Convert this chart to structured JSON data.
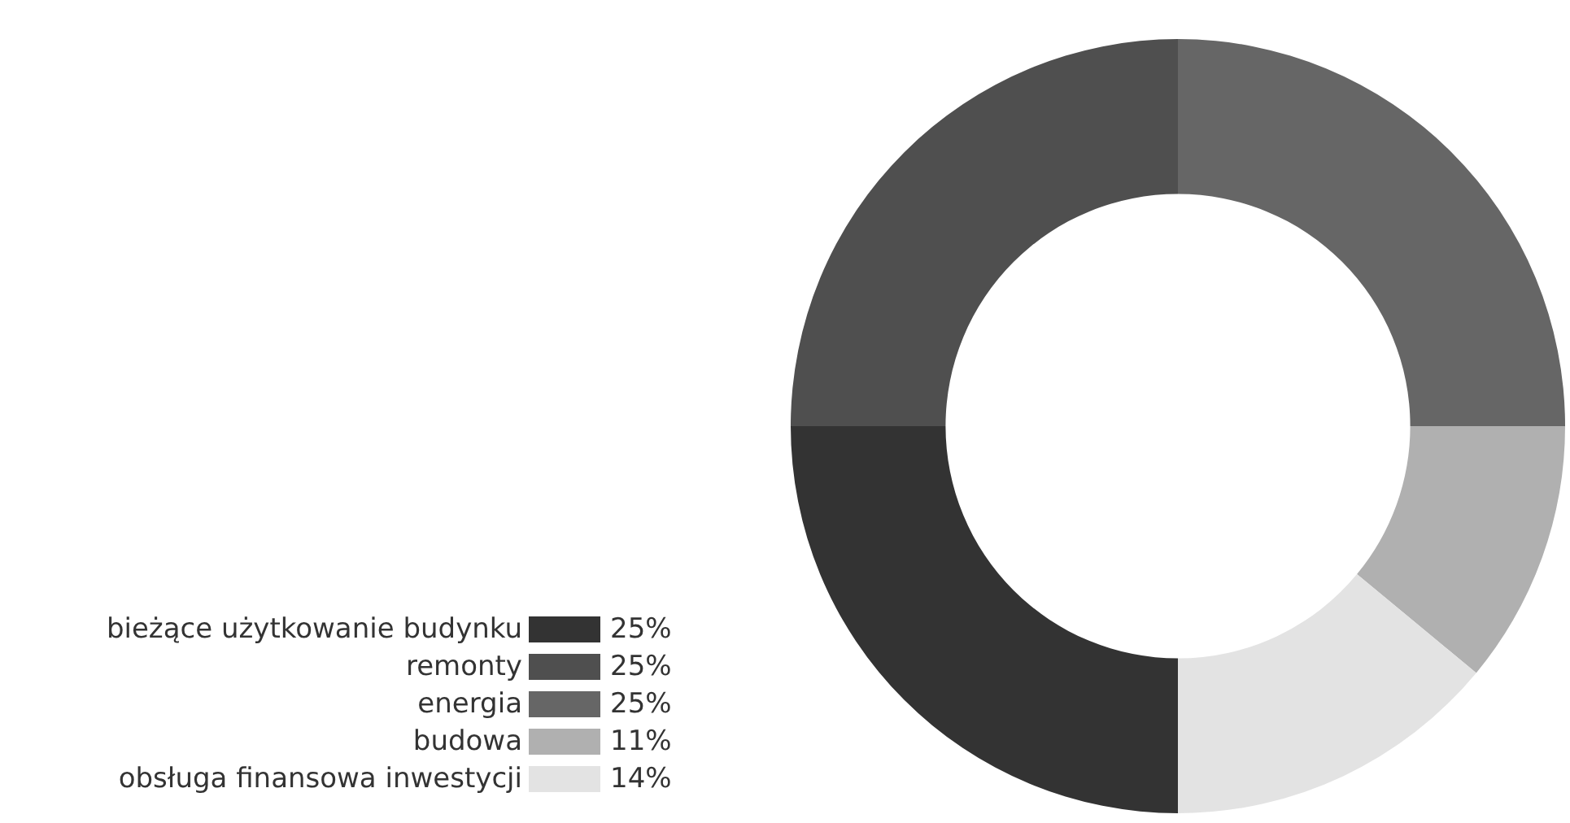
{
  "chart_data": {
    "type": "donut",
    "categories": [
      "bieżące użytkowanie budynku",
      "remonty",
      "energia",
      "budowa",
      "obsługa finansowa inwestycji"
    ],
    "values": [
      25,
      25,
      25,
      11,
      14
    ],
    "colors": [
      "#333333",
      "#4f4f4f",
      "#666666",
      "#b0b0b0",
      "#e3e3e3"
    ],
    "value_labels": [
      "25%",
      "25%",
      "25%",
      "11%",
      "14%"
    ],
    "legend": "bottom left"
  }
}
